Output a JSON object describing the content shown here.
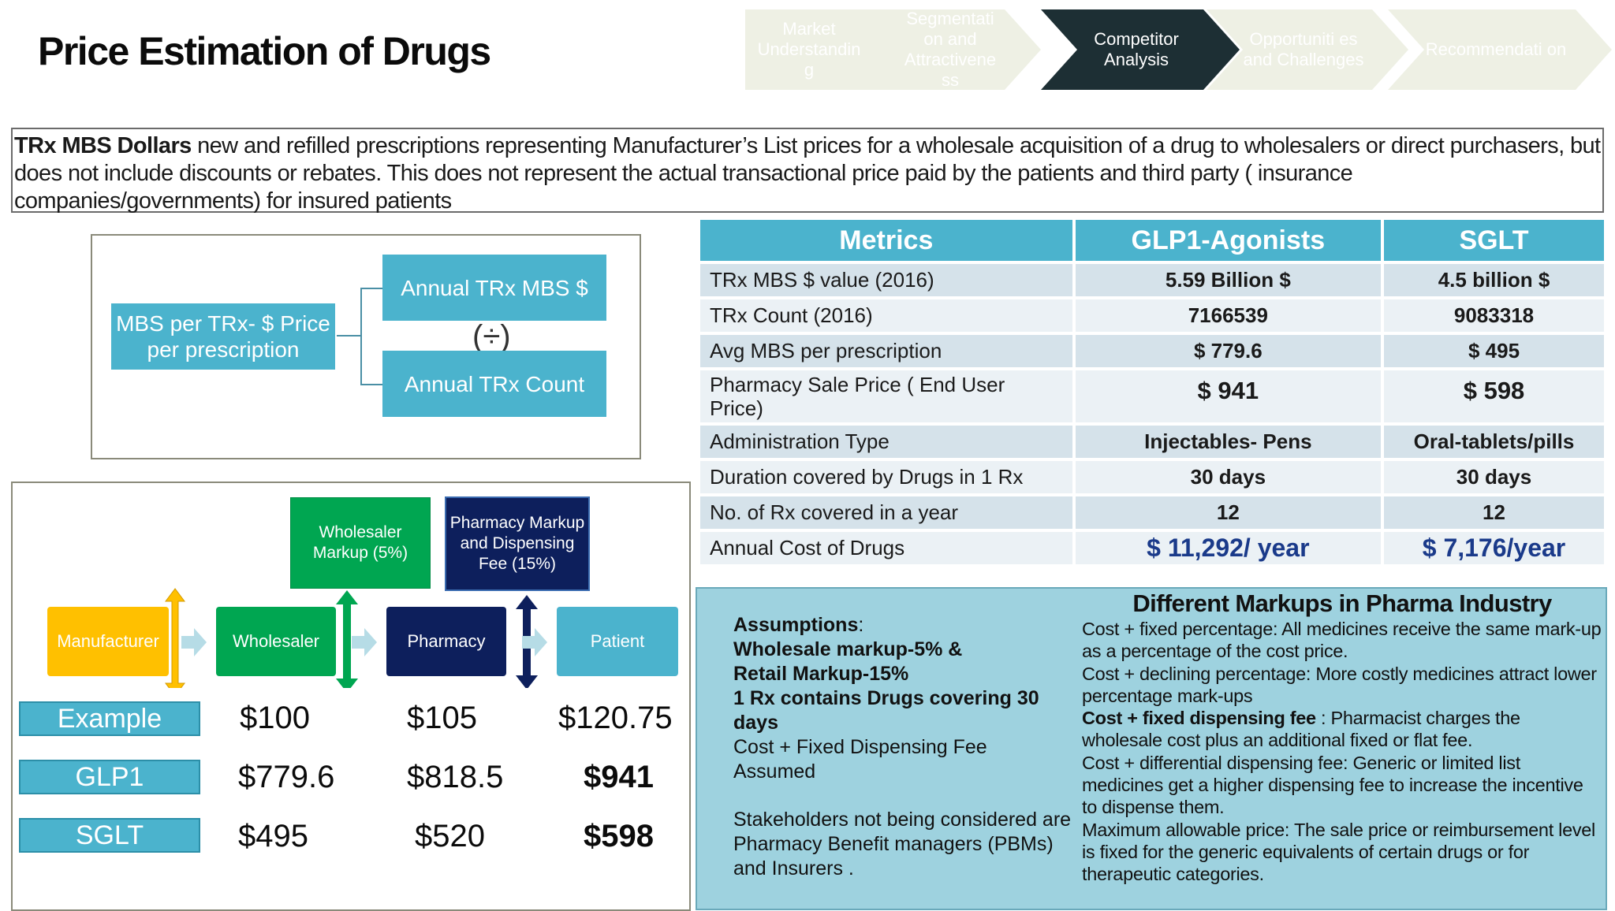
{
  "page": {
    "title": "Price Estimation of Drugs"
  },
  "nav": {
    "steps": [
      {
        "label": "Market Understandin g",
        "active": false
      },
      {
        "label": "Segmentati on and Attractivene ss",
        "active": false
      },
      {
        "label": "Competitor Analysis",
        "active": true
      },
      {
        "label": "Opportuniti es and Challenges",
        "active": false
      },
      {
        "label": "Recommendati on",
        "active": false
      }
    ]
  },
  "definition": {
    "bold": "TRx MBS Dollars",
    "text": " new and refilled prescriptions representing Manufacturer’s List prices for a wholesale acquisition of a drug to wholesalers or direct purchasers, but does not include discounts or rebates. This does not represent the actual transactional price paid by the patients and third party ( insurance companies/governments) for insured patients"
  },
  "formula": {
    "left": "MBS per TRx- $ Price per prescription",
    "top": "Annual TRx MBS $",
    "operator": "(÷)",
    "bottom": "Annual TRx Count"
  },
  "chain": {
    "nodes": [
      "Manufacturer",
      "Wholesaler",
      "Pharmacy",
      "Patient"
    ],
    "markups": {
      "wholesaler": "Wholesaler Markup (5%)",
      "pharmacy": "Pharmacy Markup and Dispensing Fee (15%)"
    },
    "rows": [
      {
        "label": "Example",
        "values": [
          "$100",
          "$105",
          "$120.75"
        ]
      },
      {
        "label": "GLP1",
        "values": [
          "$779.6",
          "$818.5",
          "$941"
        ]
      },
      {
        "label": "SGLT",
        "values": [
          "$495",
          "$520",
          "$598"
        ]
      }
    ]
  },
  "metrics": {
    "headers": [
      "Metrics",
      "GLP1-Agonists",
      "SGLT"
    ],
    "rows": [
      [
        "TRx MBS $ value (2016)",
        "5.59 Billion $",
        "4.5 billion $"
      ],
      [
        "TRx Count (2016)",
        "7166539",
        "9083318"
      ],
      [
        "Avg MBS per prescription",
        "$ 779.6",
        "$ 495"
      ],
      [
        "Pharmacy Sale Price ( End User Price)",
        "$ 941",
        "$ 598"
      ],
      [
        "Administration Type",
        "Injectables- Pens",
        "Oral-tablets/pills"
      ],
      [
        "Duration covered by Drugs in 1 Rx",
        "30 days",
        "30 days"
      ],
      [
        "No. of Rx covered in a year",
        "12",
        "12"
      ],
      [
        "Annual Cost of Drugs",
        "$ 11,292/ year",
        "$ 7,176/year"
      ]
    ]
  },
  "assumptions": {
    "heading": "Assumptions",
    "heading_suffix": ":",
    "bold_lines": [
      "Wholesale markup-5% &",
      "Retail Markup-15%",
      "1 Rx contains Drugs covering 30 days"
    ],
    "normal_lines": [
      "Cost + Fixed Dispensing Fee Assumed"
    ],
    "stakeholders": "Stakeholders not being considered are Pharmacy Benefit managers (PBMs) and Insurers ."
  },
  "markups_info": {
    "heading": "Different Markups in Pharma Industry",
    "items": [
      {
        "bold": "",
        "text": "Cost + fixed percentage: All medicines receive the same mark-up as a percentage of the cost price."
      },
      {
        "bold": "",
        "text": "Cost + declining percentage: More costly medicines attract lower percentage mark-ups"
      },
      {
        "bold": "Cost + fixed dispensing fee",
        "text": " : Pharmacist charges the wholesale cost plus an additional fixed or flat fee."
      },
      {
        "bold": "",
        "text": "Cost + differential dispensing fee: Generic or limited list medicines get a higher dispensing fee to increase the incentive to dispense them."
      },
      {
        "bold": "",
        "text": "Maximum allowable price: The sale price or reimbursement level is fixed for the generic equivalents of certain drugs or for therapeutic categories."
      }
    ]
  },
  "colors": {
    "accent_teal": "#4bb3cd",
    "nav_active": "#1d2f34",
    "manufacturer": "#ffc000",
    "wholesaler": "#00a651",
    "pharmacy": "#0d1f5c",
    "patient": "#4bb3cd",
    "annual_cost_blue": "#1a3a8a"
  }
}
